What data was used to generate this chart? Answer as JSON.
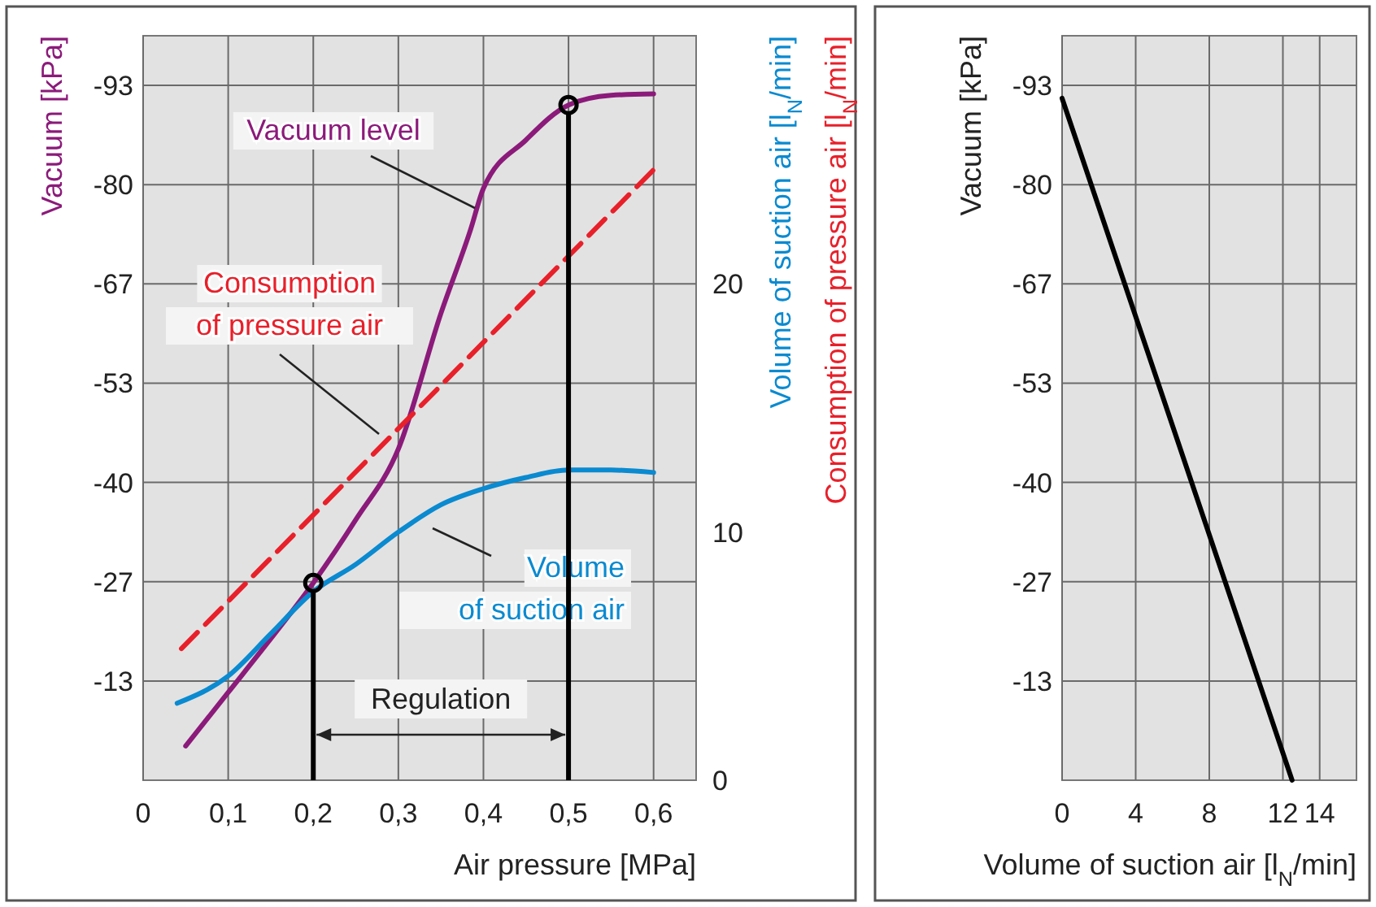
{
  "chart_data": [
    {
      "type": "line",
      "xlabel": "Air pressure [MPa]",
      "ylabel": "Vacuum [kPa]",
      "y2label": "Volume of suction air [l$_{N}$/min]",
      "xlim": [
        0,
        0.65
      ],
      "xticks": [
        0,
        {
          "value": 0.1,
          "label": "0,1"
        },
        {
          "value": 0.2,
          "label": "0,2"
        },
        {
          "value": 0.3,
          "label": "0,3"
        },
        {
          "value": 0.4,
          "label": "0,4"
        },
        {
          "value": 0.5,
          "label": "0,5"
        },
        {
          "value": 0.6,
          "label": "0,6"
        }
      ],
      "ylim": [
        0,
        -100
      ],
      "yticks": [
        {
          "value": -13.33,
          "label": "-13"
        },
        {
          "value": -26.67,
          "label": "-27"
        },
        {
          "value": -40,
          "label": "-40"
        },
        {
          "value": -53.33,
          "label": "-53"
        },
        {
          "value": -66.67,
          "label": "-67"
        },
        {
          "value": -80,
          "label": "-80"
        },
        {
          "value": -93.33,
          "label": "-93"
        }
      ],
      "y2lim": [
        0,
        30
      ],
      "y2ticks": [
        0,
        10,
        20
      ],
      "grid": true,
      "series": [
        {
          "name": "Vacuum level",
          "color": "#8b1a7a",
          "x": [
            0.05,
            0.1,
            0.15,
            0.2,
            0.25,
            0.3,
            0.35,
            0.385,
            0.4,
            0.45,
            0.5,
            0.55,
            0.6
          ],
          "values": [
            -4.6,
            -11.8,
            -19,
            -26.5,
            -35,
            -44.5,
            -62.7,
            -74,
            -79.5,
            -86,
            -90.7,
            -92,
            -92.2
          ]
        },
        {
          "name": "Consumption of pressure air",
          "color": "#e8202a",
          "axis": "y2",
          "line_style": "dashed",
          "x": [
            0.045,
            0.6
          ],
          "values": [
            5.3,
            24.6
          ]
        },
        {
          "name": "Volume of suction air",
          "color": "#0a8ad0",
          "axis": "y2",
          "x": [
            0.04,
            0.1,
            0.15,
            0.2,
            0.25,
            0.3,
            0.35,
            0.4,
            0.45,
            0.5,
            0.55,
            0.6
          ],
          "values": [
            3.1,
            4.2,
            5.9,
            7.6,
            8.7,
            10,
            11.1,
            11.75,
            12.2,
            12.5,
            12.5,
            12.4
          ]
        },
        {
          "type": "scatter",
          "color": "#000000",
          "marker": "circle",
          "x": [
            0.2,
            0.5
          ],
          "values": [
            -26.5,
            -90.7
          ]
        }
      ],
      "ref_lines": [
        {
          "axis": "x",
          "value": 0.2,
          "color": "#000000"
        },
        {
          "axis": "x",
          "value": 0.5,
          "color": "#000000"
        }
      ],
      "annotations": [
        "Consumption of pressure air [l$_{N}$/min]",
        "Regulation"
      ]
    },
    {
      "type": "line",
      "xlabel": "Volume of suction air [l$_{N}$/min]",
      "ylabel": "Vacuum [kPa]",
      "xlim": [
        0,
        16
      ],
      "xticks": [
        0,
        4,
        8,
        12,
        14
      ],
      "ylim": [
        0,
        -100
      ],
      "yticks": [
        {
          "value": -13.33,
          "label": "-13"
        },
        {
          "value": -26.67,
          "label": "-27"
        },
        {
          "value": -40,
          "label": "-40"
        },
        {
          "value": -53.33,
          "label": "-53"
        },
        {
          "value": -66.67,
          "label": "-67"
        },
        {
          "value": -80,
          "label": "-80"
        },
        {
          "value": -93.33,
          "label": "-93"
        }
      ],
      "grid": true,
      "series": [
        {
          "color": "#000000",
          "x": [
            0,
            12.5
          ],
          "values": [
            -91.6,
            0
          ]
        }
      ]
    }
  ]
}
